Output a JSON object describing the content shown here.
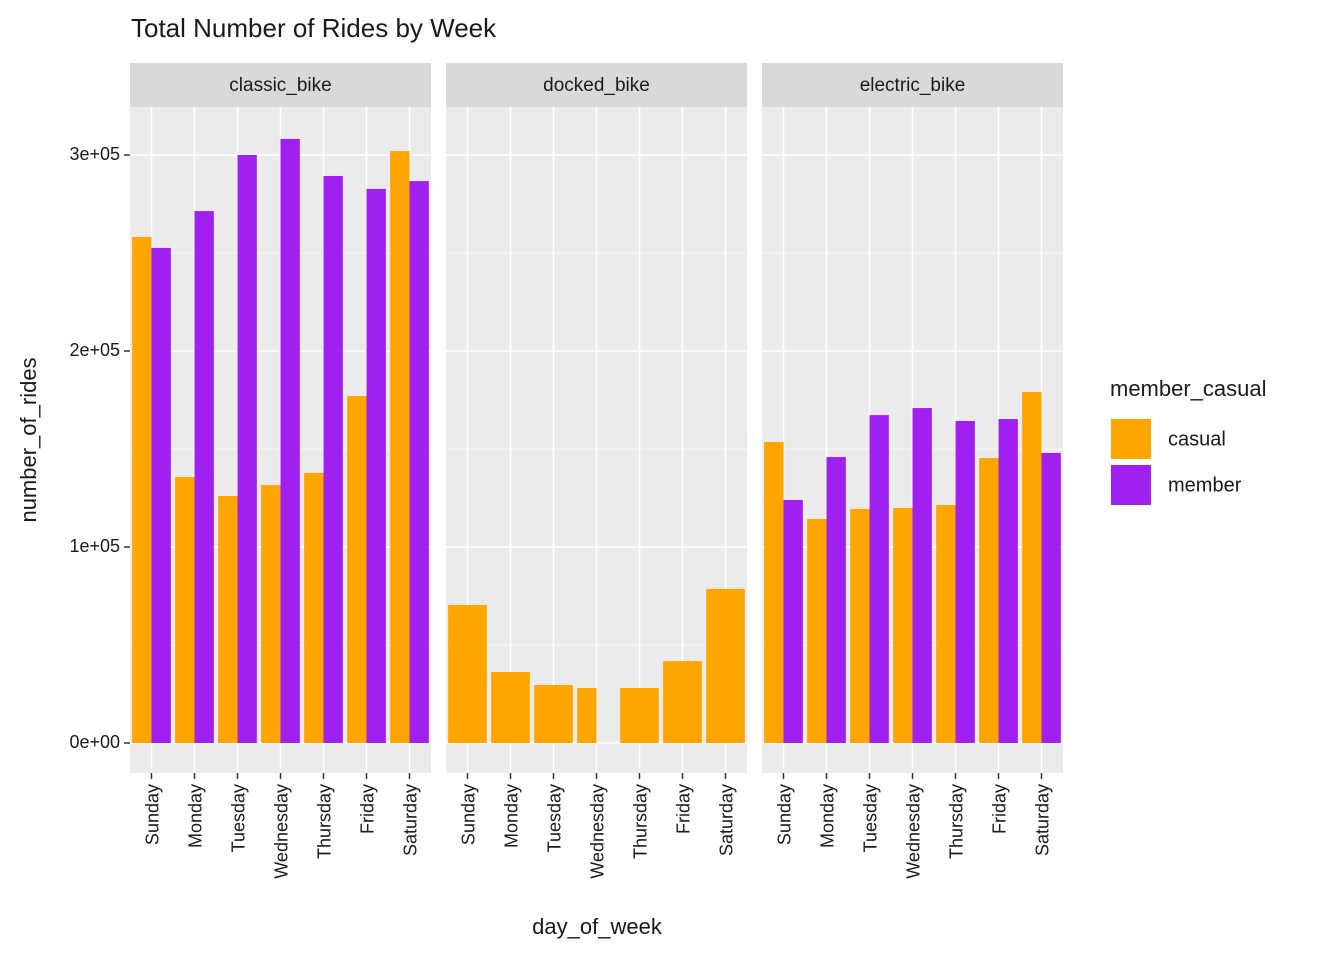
{
  "chart_data": {
    "type": "bar",
    "title": "Total Number of Rides by Week",
    "x_label": "day_of_week",
    "y_label": "number_of_rides",
    "legend_title": "member_casual",
    "legend_position": "right",
    "grid": true,
    "categories": [
      "Sunday",
      "Monday",
      "Tuesday",
      "Wednesday",
      "Thursday",
      "Friday",
      "Saturday"
    ],
    "ylim": [
      -15300,
      324500
    ],
    "yticks": [
      {
        "value": 0,
        "label": "0e+00"
      },
      {
        "value": 100000,
        "label": "1e+05"
      },
      {
        "value": 200000,
        "label": "2e+05"
      },
      {
        "value": 300000,
        "label": "3e+05"
      }
    ],
    "series": [
      {
        "name": "casual",
        "color": "#FFA500"
      },
      {
        "name": "member",
        "color": "#A020F0"
      }
    ],
    "panels": [
      {
        "label": "classic_bike",
        "series": [
          {
            "values": [
              258200,
              135700,
              126000,
              131600,
              137800,
              177000,
              302000
            ]
          },
          {
            "values": [
              252600,
              271400,
              300000,
              308200,
              289300,
              282700,
              286700
            ]
          }
        ]
      },
      {
        "label": "docked_bike",
        "series": [
          {
            "values": [
              70400,
              36200,
              29600,
              28100,
              28100,
              41800,
              78600
            ]
          },
          {
            "values": [
              null,
              null,
              null,
              0,
              null,
              null,
              null
            ]
          }
        ]
      },
      {
        "label": "electric_bike",
        "series": [
          {
            "values": [
              153600,
              114300,
              119400,
              119900,
              121400,
              145400,
              179100
            ]
          },
          {
            "values": [
              124000,
              145900,
              167300,
              170900,
              164300,
              165300,
              148000
            ]
          }
        ]
      }
    ]
  }
}
